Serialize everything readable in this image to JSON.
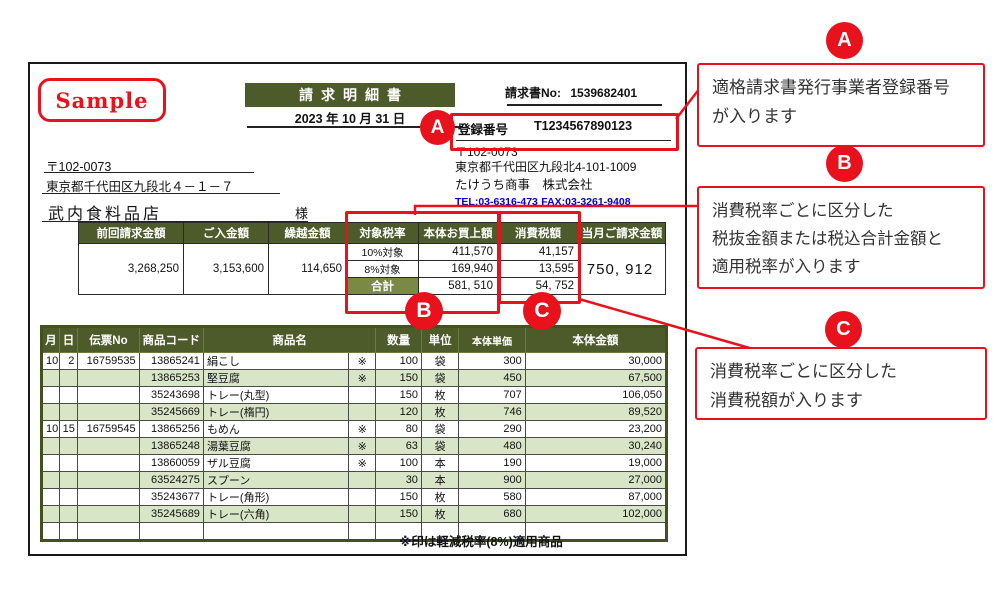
{
  "invoice": {
    "sample_stamp": "Sample",
    "title": "請求明細書",
    "date": "2023 年 10 月 31 日",
    "invoice_no_label": "請求書No:",
    "invoice_no": "1539682401",
    "registration_label": "登録番号",
    "registration_number": "T1234567890123",
    "recipient": {
      "postal": "〒102-0073",
      "address": "東京都千代田区九段北４－１－７",
      "name": "武内食料品店",
      "honorific": "様"
    },
    "sender": {
      "postal": "〒102-0073",
      "address": "東京都千代田区九段北4-101-1009",
      "company": "たけうち商事　株式会社",
      "tel": "TEL:03-6316-473",
      "fax": "FAX:03-3261-9408"
    },
    "summary": {
      "headers": [
        "前回請求金額",
        "ご入金額",
        "繰越金額",
        "対象税率",
        "本体お買上額",
        "消費税額",
        "当月ご請求金額"
      ],
      "previous_amount": "3,268,250",
      "payment_amount": "3,153,600",
      "carryover_amount": "114,650",
      "tax_rows": [
        {
          "rate": "10%対象",
          "base": "411,570",
          "tax": "41,157"
        },
        {
          "rate": "8%対象",
          "base": "169,940",
          "tax": "13,595"
        },
        {
          "rate": "合計",
          "base": "581, 510",
          "tax": "54, 752"
        }
      ],
      "current_billing": "750, 912"
    },
    "details": {
      "headers": [
        "月",
        "日",
        "伝票No",
        "商品コード",
        "商品名",
        "数量",
        "単位",
        "本体単価",
        "本体金額"
      ],
      "rows": [
        {
          "month": "10",
          "day": "2",
          "slip_no": "16759535",
          "item_code": "13865241",
          "item_name": "絹こし",
          "reduced": "※",
          "qty": "100",
          "unit": "袋",
          "unit_price": "300",
          "amount": "30,000"
        },
        {
          "month": "",
          "day": "",
          "slip_no": "",
          "item_code": "13865253",
          "item_name": "堅豆腐",
          "reduced": "※",
          "qty": "150",
          "unit": "袋",
          "unit_price": "450",
          "amount": "67,500"
        },
        {
          "month": "",
          "day": "",
          "slip_no": "",
          "item_code": "35243698",
          "item_name": "トレー(丸型)",
          "reduced": "",
          "qty": "150",
          "unit": "枚",
          "unit_price": "707",
          "amount": "106,050"
        },
        {
          "month": "",
          "day": "",
          "slip_no": "",
          "item_code": "35245669",
          "item_name": "トレー(楕円)",
          "reduced": "",
          "qty": "120",
          "unit": "枚",
          "unit_price": "746",
          "amount": "89,520"
        },
        {
          "month": "10",
          "day": "15",
          "slip_no": "16759545",
          "item_code": "13865256",
          "item_name": "もめん",
          "reduced": "※",
          "qty": "80",
          "unit": "袋",
          "unit_price": "290",
          "amount": "23,200"
        },
        {
          "month": "",
          "day": "",
          "slip_no": "",
          "item_code": "13865248",
          "item_name": "湯葉豆腐",
          "reduced": "※",
          "qty": "63",
          "unit": "袋",
          "unit_price": "480",
          "amount": "30,240"
        },
        {
          "month": "",
          "day": "",
          "slip_no": "",
          "item_code": "13860059",
          "item_name": "ザル豆腐",
          "reduced": "※",
          "qty": "100",
          "unit": "本",
          "unit_price": "190",
          "amount": "19,000"
        },
        {
          "month": "",
          "day": "",
          "slip_no": "",
          "item_code": "63524275",
          "item_name": "スプーン",
          "reduced": "",
          "qty": "30",
          "unit": "本",
          "unit_price": "900",
          "amount": "27,000"
        },
        {
          "month": "",
          "day": "",
          "slip_no": "",
          "item_code": "35243677",
          "item_name": "トレー(角形)",
          "reduced": "",
          "qty": "150",
          "unit": "枚",
          "unit_price": "580",
          "amount": "87,000"
        },
        {
          "month": "",
          "day": "",
          "slip_no": "",
          "item_code": "35245689",
          "item_name": "トレー(六角)",
          "reduced": "",
          "qty": "150",
          "unit": "枚",
          "unit_price": "680",
          "amount": "102,000"
        },
        {
          "month": "",
          "day": "",
          "slip_no": "",
          "item_code": "",
          "item_name": "",
          "reduced": "",
          "qty": "",
          "unit": "",
          "unit_price": "",
          "amount": ""
        }
      ],
      "footnote": "※印は軽減税率(8%)適用商品"
    }
  },
  "annotations": {
    "a": {
      "badge": "A",
      "lines": [
        "適格請求書発行事業者登録番号",
        "が入ります"
      ]
    },
    "b": {
      "badge": "B",
      "lines": [
        "消費税率ごとに区分した",
        "税抜金額または税込合計金額と",
        "適用税率が入ります"
      ]
    },
    "c": {
      "badge": "C",
      "lines": [
        "消費税率ごとに区分した",
        "消費税額が入ります"
      ]
    }
  },
  "colors": {
    "accent_red": "#e8121c",
    "header_olive": "#4d5a2a",
    "total_olive": "#7a8a45",
    "stripe_green": "#d9e5c7",
    "link_blue": "#0000dd"
  }
}
